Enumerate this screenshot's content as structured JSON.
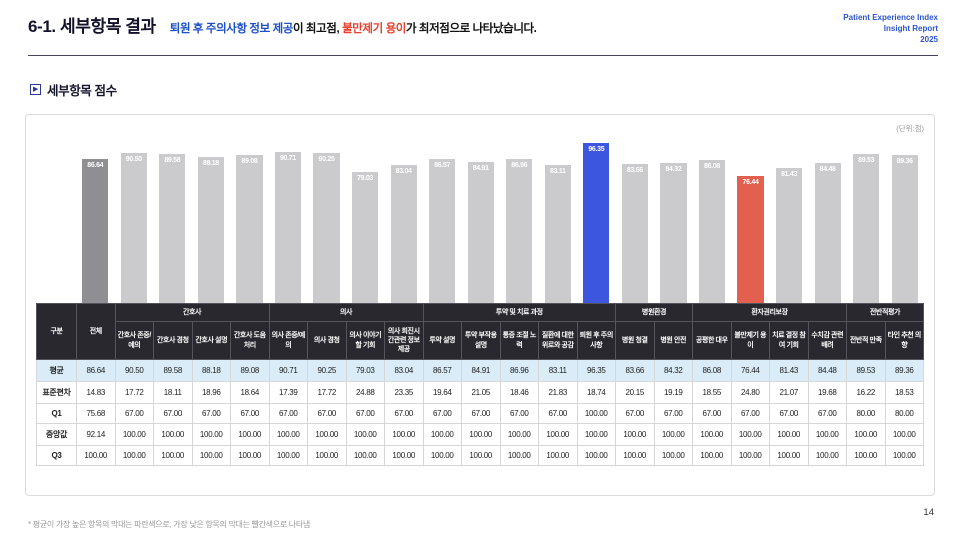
{
  "header": {
    "title": "6-1. 세부항목 결과",
    "subtitle": {
      "high": "퇴원 후 주의사항 정보 제공",
      "mid": "이 최고점, ",
      "low": "불만제기 용이",
      "tail": "가 최저점으로 나타났습니다."
    },
    "report_info": {
      "line1": "Patient Experience Index",
      "line2": "Insight Report",
      "line3": "2025"
    }
  },
  "section": {
    "title": "세부항목 점수"
  },
  "chart": {
    "unit_label": "(단위:점)"
  },
  "chart_data": {
    "type": "bar",
    "title": "세부항목 점수",
    "unit": "점",
    "ylim": [
      0,
      100
    ],
    "grid": false,
    "legend": "none",
    "row_header": "구분",
    "groups": [
      {
        "label": "간호사",
        "span": 4
      },
      {
        "label": "의사",
        "span": 4
      },
      {
        "label": "투약 및 치료 과정",
        "span": 5
      },
      {
        "label": "병원환경",
        "span": 2
      },
      {
        "label": "환자권리보장",
        "span": 4
      },
      {
        "label": "전반적평가",
        "span": 2
      }
    ],
    "categories": [
      "전체",
      "간호사 존중/예의",
      "간호사 경청",
      "간호사 설명",
      "간호사 도움처리",
      "의사 존중/예의",
      "의사 경청",
      "의사 이야기할 기회",
      "의사 회진시간관련 정보 제공",
      "투약 설명",
      "투약 부작용 설명",
      "통증 조절 노력",
      "질환에 대한 위로와 공감",
      "퇴원 후 주의 사항",
      "병원 청결",
      "병원 안전",
      "공평한 대우",
      "불만제기 용이",
      "치료 결정 참여 기회",
      "수치감 관련 배려",
      "전반적 만족",
      "타인 추천 의향"
    ],
    "rows": [
      {
        "label": "평균",
        "values": [
          86.64,
          90.5,
          89.58,
          88.18,
          89.08,
          90.71,
          90.25,
          79.03,
          83.04,
          86.57,
          84.91,
          86.96,
          83.11,
          96.35,
          83.66,
          84.32,
          86.08,
          76.44,
          81.43,
          84.48,
          89.53,
          89.36
        ]
      },
      {
        "label": "표준편차",
        "values": [
          14.83,
          17.72,
          18.11,
          18.96,
          18.64,
          17.39,
          17.72,
          24.88,
          23.35,
          19.64,
          21.05,
          18.46,
          21.83,
          18.74,
          20.15,
          19.19,
          18.55,
          24.8,
          21.07,
          19.68,
          16.22,
          18.53
        ]
      },
      {
        "label": "Q1",
        "values": [
          75.68,
          67.0,
          67.0,
          67.0,
          67.0,
          67.0,
          67.0,
          67.0,
          67.0,
          67.0,
          67.0,
          67.0,
          67.0,
          100.0,
          67.0,
          67.0,
          67.0,
          67.0,
          67.0,
          67.0,
          80.0,
          80.0
        ]
      },
      {
        "label": "중앙값",
        "values": [
          92.14,
          100.0,
          100.0,
          100.0,
          100.0,
          100.0,
          100.0,
          100.0,
          100.0,
          100.0,
          100.0,
          100.0,
          100.0,
          100.0,
          100.0,
          100.0,
          100.0,
          100.0,
          100.0,
          100.0,
          100.0,
          100.0
        ]
      },
      {
        "label": "Q3",
        "values": [
          100.0,
          100.0,
          100.0,
          100.0,
          100.0,
          100.0,
          100.0,
          100.0,
          100.0,
          100.0,
          100.0,
          100.0,
          100.0,
          100.0,
          100.0,
          100.0,
          100.0,
          100.0,
          100.0,
          100.0,
          100.0,
          100.0
        ]
      }
    ],
    "bar_colors": {
      "default": "#cbcbcd",
      "total": "#8f8f93",
      "max": "#3d56e0",
      "min": "#e2604d"
    },
    "max_index": 13,
    "min_index": 17
  },
  "footnote": "* 평균이 가장 높은 항목의 막대는 파란색으로, 가장 낮은 항목의 막대는 빨간색으로 나타냄",
  "page_number": "14"
}
